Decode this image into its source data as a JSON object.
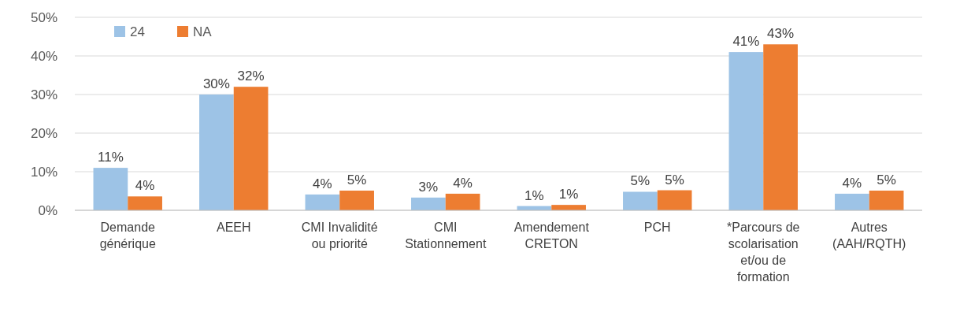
{
  "chart_data": {
    "type": "bar",
    "categories": [
      "Demande générique",
      "AEEH",
      "CMI Invalidité ou priorité",
      "CMI Stationnement",
      "Amendement CRETON",
      "PCH",
      "*Parcours de scolarisation et/ou de formation",
      "Autres (AAH/RQTH)"
    ],
    "series": [
      {
        "name": "24",
        "color": "#9dc3e6",
        "values": [
          11,
          30,
          4.1,
          3.3,
          1.1,
          4.8,
          41,
          4.3
        ],
        "value_labels": [
          "11%",
          "30%",
          "4%",
          "3%",
          "1%",
          "5%",
          "41%",
          "4%"
        ]
      },
      {
        "name": "NA",
        "color": "#ed7d31",
        "values": [
          3.6,
          32,
          5.1,
          4.3,
          1.4,
          5.2,
          43,
          5.1
        ],
        "value_labels": [
          "4%",
          "32%",
          "5%",
          "4%",
          "1%",
          "5%",
          "43%",
          "5%"
        ]
      }
    ],
    "ylim": [
      0,
      50
    ],
    "yticks": [
      {
        "value": 0,
        "label": "0%"
      },
      {
        "value": 10,
        "label": "10%"
      },
      {
        "value": 20,
        "label": "20%"
      },
      {
        "value": 30,
        "label": "30%"
      },
      {
        "value": 40,
        "label": "40%"
      },
      {
        "value": 50,
        "label": "50%"
      }
    ],
    "grid": "y",
    "legend": "top left"
  }
}
